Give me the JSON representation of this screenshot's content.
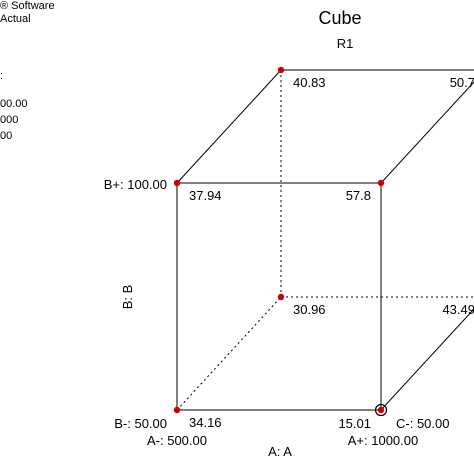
{
  "sidebar": {
    "lines": [
      "® Software",
      "Actual",
      ":",
      "00.00",
      "000",
      "00"
    ]
  },
  "chart_data": {
    "type": "cube",
    "title": "Cube",
    "subtitle": "R1",
    "xlabel": "A: A",
    "ylabel": "B: B",
    "factors": {
      "A": {
        "low": "A-: 500.00",
        "high": "A+: 1000.00"
      },
      "B": {
        "low": "B-: 50.00",
        "high": "B+: 100.00"
      },
      "C": {
        "low": "C-: 50.00",
        "high": ""
      }
    },
    "corners": [
      {
        "A": "-",
        "B": "-",
        "C": "-",
        "value": "34.16"
      },
      {
        "A": "+",
        "B": "-",
        "C": "-",
        "value": "15.01"
      },
      {
        "A": "-",
        "B": "+",
        "C": "-",
        "value": "37.94"
      },
      {
        "A": "+",
        "B": "+",
        "C": "-",
        "value": "57.8"
      },
      {
        "A": "-",
        "B": "-",
        "C": "+",
        "value": "30.96"
      },
      {
        "A": "+",
        "B": "-",
        "C": "+",
        "value": "43.49"
      },
      {
        "A": "-",
        "B": "+",
        "C": "+",
        "value": "40.83"
      },
      {
        "A": "+",
        "B": "+",
        "C": "+",
        "value": "50.7"
      }
    ],
    "colors": {
      "point": "#cc0000",
      "line": "#000000"
    }
  }
}
